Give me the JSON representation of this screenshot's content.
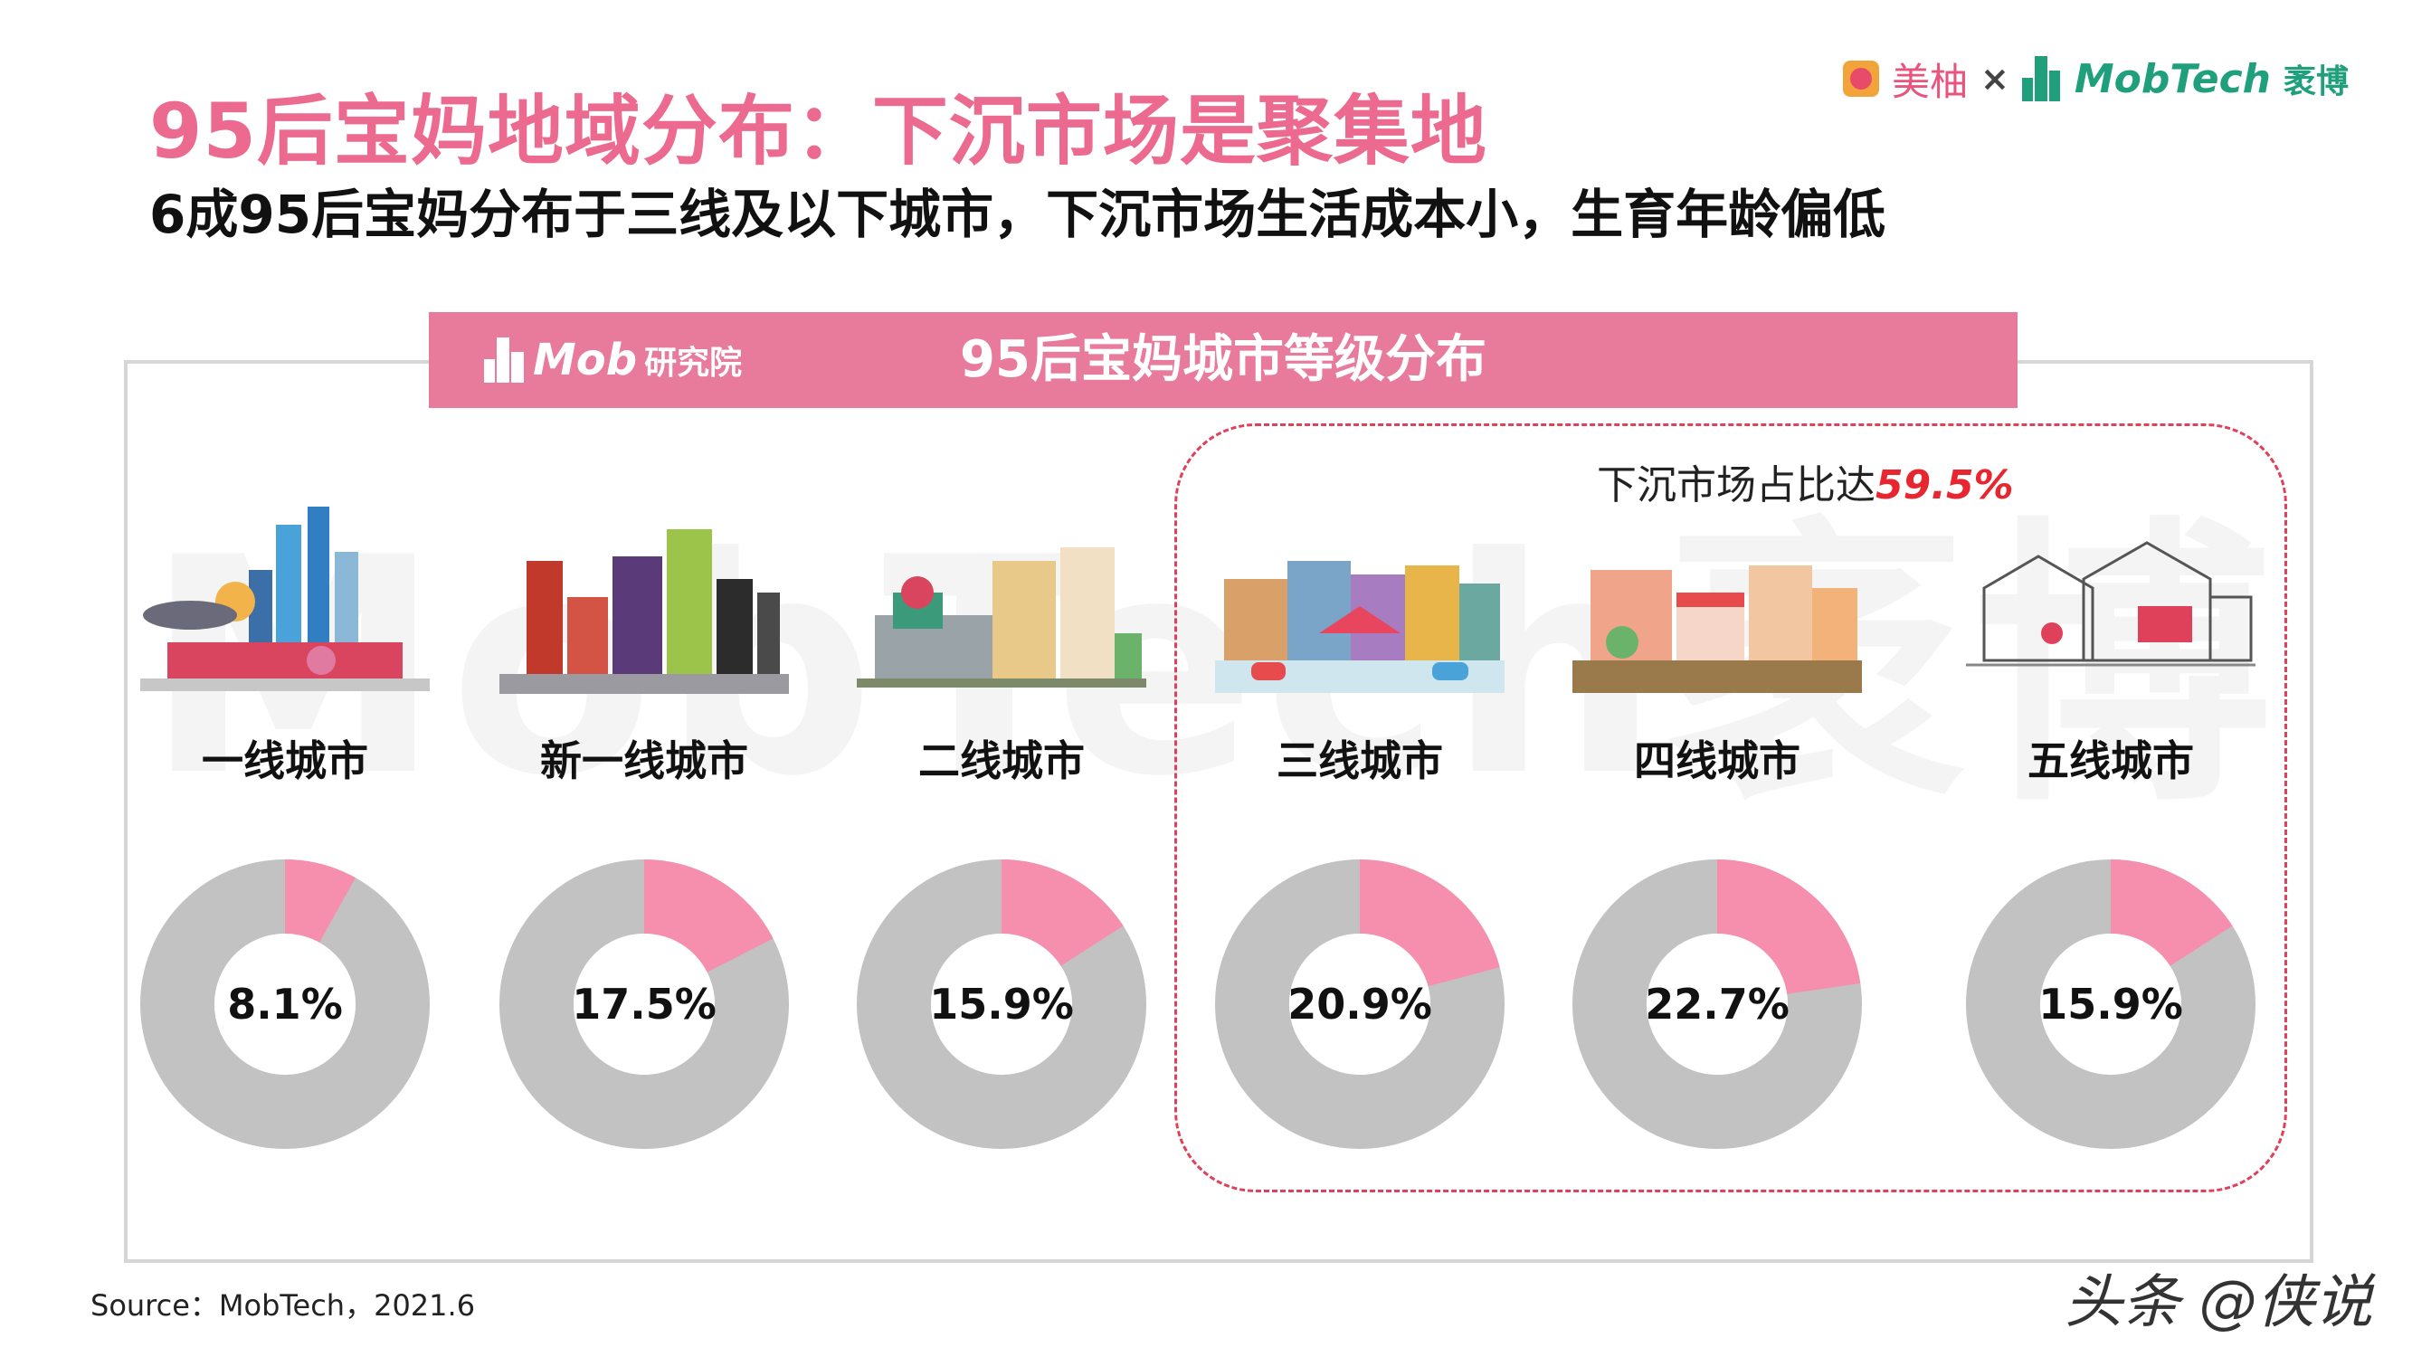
{
  "header": {
    "title": "95后宝妈地域分布：下沉市场是聚集地",
    "subtitle": "6成95后宝妈分布于三线及以下城市，下沉市场生活成本小，生育年龄偏低"
  },
  "logos": {
    "meiyou": "美柚",
    "cross": "×",
    "mobtech": "MobTech",
    "mobtech_cn": "袤博"
  },
  "banner": {
    "logo_text": "Mob",
    "logo_cn": "研究院",
    "title": "95后宝妈城市等级分布"
  },
  "watermark": "MobTech袤博",
  "highlight": {
    "label": "下沉市场占比达",
    "value": "59.5%"
  },
  "chart_data": {
    "type": "pie",
    "title": "95后宝妈城市等级分布",
    "categories": [
      "一线城市",
      "新一线城市",
      "二线城市",
      "三线城市",
      "四线城市",
      "五线城市"
    ],
    "values": [
      8.1,
      17.5,
      15.9,
      20.9,
      22.7,
      15.9
    ],
    "value_labels": [
      "8.1%",
      "17.5%",
      "15.9%",
      "20.9%",
      "22.7%",
      "15.9%"
    ],
    "unit": "%",
    "colors": {
      "share": "#f58fad",
      "remainder": "#c2c2c2"
    }
  },
  "icons": [
    "skyline-tier1-icon",
    "skyline-newtier1-icon",
    "town-tier2-icon",
    "street-tier3-icon",
    "shops-tier4-icon",
    "village-tier5-icon"
  ],
  "footer": {
    "source": "Source：MobTech，2021.6",
    "watermark": "头条 @侠说"
  }
}
